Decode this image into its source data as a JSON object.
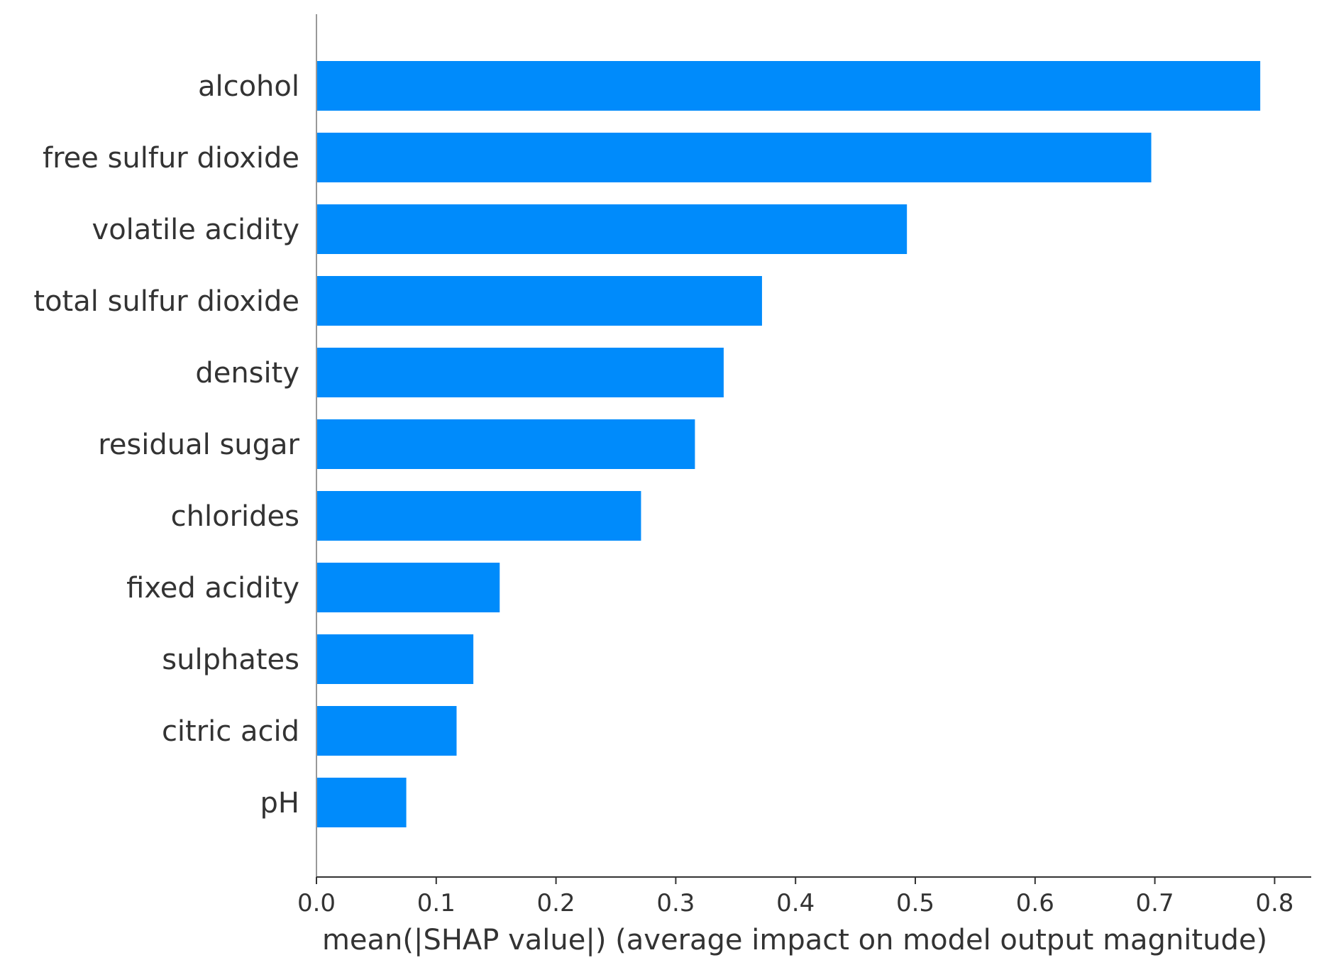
{
  "chart_data": {
    "type": "bar",
    "orientation": "horizontal",
    "title": "",
    "xlabel": "mean(|SHAP value|) (average impact on model output magnitude)",
    "ylabel": "",
    "xlim": [
      0.0,
      0.83
    ],
    "xticks": [
      0.0,
      0.1,
      0.2,
      0.3,
      0.4,
      0.5,
      0.6,
      0.7,
      0.8
    ],
    "xtick_labels": [
      "0.0",
      "0.1",
      "0.2",
      "0.3",
      "0.4",
      "0.5",
      "0.6",
      "0.7",
      "0.8"
    ],
    "categories": [
      "alcohol",
      "free sulfur dioxide",
      "volatile acidity",
      "total sulfur dioxide",
      "density",
      "residual sugar",
      "chlorides",
      "fixed acidity",
      "sulphates",
      "citric acid",
      "pH"
    ],
    "values": [
      0.788,
      0.697,
      0.493,
      0.372,
      0.34,
      0.316,
      0.271,
      0.153,
      0.131,
      0.117,
      0.075
    ],
    "bar_color": "#008bfb",
    "axis_color": "#333333",
    "grid": false,
    "legend": "none"
  }
}
